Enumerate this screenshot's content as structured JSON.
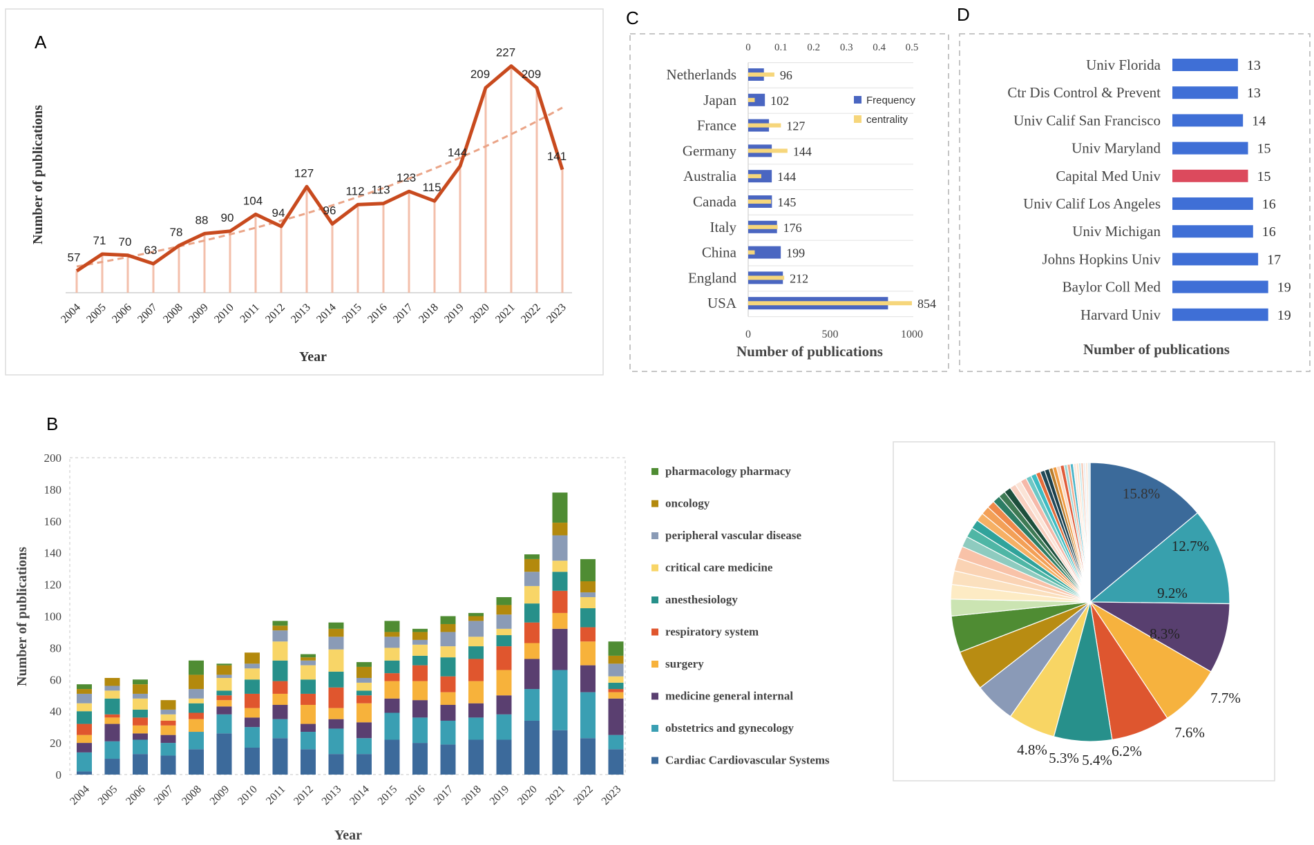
{
  "chart_data": [
    {
      "panel": "A",
      "type": "line",
      "title": "",
      "xlabel": "Year",
      "ylabel": "Number of publications",
      "x": [
        "2004",
        "2005",
        "2006",
        "2007",
        "2008",
        "2009",
        "2010",
        "2011",
        "2012",
        "2013",
        "2014",
        "2015",
        "2016",
        "2017",
        "2018",
        "2019",
        "2020",
        "2021",
        "2022",
        "2023"
      ],
      "values": [
        57,
        71,
        70,
        63,
        78,
        88,
        90,
        104,
        94,
        127,
        96,
        112,
        113,
        123,
        115,
        144,
        209,
        227,
        209,
        141
      ],
      "trendline": "exponential",
      "grid": false,
      "colors": {
        "line": "#c84a1e",
        "trend": "#eaa487",
        "stem": "#f2b9a2"
      }
    },
    {
      "panel": "B",
      "type": "bar",
      "stacked": true,
      "xlabel": "Year",
      "ylabel": "Number of publications",
      "ylim": [
        0,
        200
      ],
      "yticks": [
        0,
        20,
        40,
        60,
        80,
        100,
        120,
        140,
        160,
        180,
        200
      ],
      "categories": [
        "2004",
        "2005",
        "2006",
        "2007",
        "2008",
        "2009",
        "2010",
        "2011",
        "2012",
        "2013",
        "2014",
        "2015",
        "2016",
        "2017",
        "2018",
        "2019",
        "2020",
        "2021",
        "2022",
        "2023"
      ],
      "legend_position": "right",
      "series": [
        {
          "name": "Cardiac Cardiovascular Systems",
          "color": "#3c6a9b",
          "values": [
            2,
            10,
            13,
            12,
            16,
            26,
            17,
            23,
            16,
            13,
            13,
            22,
            20,
            19,
            22,
            22,
            34,
            28,
            23,
            16
          ]
        },
        {
          "name": "obstetrics and gynecology",
          "color": "#3a9fb3",
          "values": [
            12,
            11,
            9,
            8,
            11,
            12,
            13,
            12,
            11,
            16,
            10,
            17,
            16,
            15,
            14,
            16,
            20,
            38,
            29,
            9
          ]
        },
        {
          "name": "medicine general internal",
          "color": "#5a3f70",
          "values": [
            6,
            11,
            4,
            5,
            0,
            5,
            6,
            9,
            5,
            6,
            10,
            9,
            11,
            10,
            9,
            12,
            19,
            26,
            17,
            23
          ]
        },
        {
          "name": "surgery",
          "color": "#f7b23b",
          "values": [
            5,
            4,
            5,
            6,
            8,
            4,
            6,
            7,
            12,
            7,
            12,
            11,
            12,
            8,
            14,
            16,
            10,
            10,
            15,
            4
          ]
        },
        {
          "name": "respiratory system",
          "color": "#e0562e",
          "values": [
            7,
            2,
            5,
            3,
            4,
            3,
            9,
            8,
            7,
            13,
            5,
            5,
            10,
            10,
            14,
            15,
            13,
            14,
            9,
            2
          ]
        },
        {
          "name": "anesthesiology",
          "color": "#27908a",
          "values": [
            8,
            10,
            5,
            0,
            6,
            3,
            9,
            13,
            9,
            10,
            3,
            8,
            6,
            12,
            8,
            7,
            12,
            12,
            12,
            4
          ]
        },
        {
          "name": "critical care medicine",
          "color": "#f8d567",
          "values": [
            5,
            5,
            7,
            4,
            3,
            8,
            7,
            12,
            9,
            14,
            5,
            8,
            7,
            7,
            6,
            4,
            11,
            7,
            7,
            4
          ]
        },
        {
          "name": "peripheral vascular disease",
          "color": "#8a9bb6",
          "values": [
            6,
            3,
            3,
            3,
            6,
            2,
            3,
            7,
            3,
            8,
            3,
            7,
            3,
            9,
            10,
            9,
            9,
            16,
            3,
            8
          ]
        },
        {
          "name": "oncology",
          "color": "#b3890d",
          "values": [
            3,
            5,
            6,
            6,
            9,
            6,
            7,
            3,
            2,
            5,
            7,
            3,
            5,
            5,
            3,
            6,
            8,
            8,
            7,
            5
          ]
        },
        {
          "name": "pharmacology pharmacy",
          "color": "#4f8c33",
          "values": [
            3,
            0,
            3,
            0,
            9,
            1,
            0,
            3,
            2,
            4,
            3,
            7,
            2,
            5,
            2,
            5,
            3,
            19,
            14,
            9
          ]
        }
      ]
    },
    {
      "panel": "B-pie",
      "type": "pie",
      "labeled_slices": [
        {
          "label": "15.8%",
          "value": 15.8,
          "color": "#3b6a9a"
        },
        {
          "label": "12.7%",
          "value": 12.7,
          "color": "#38a0ad"
        },
        {
          "label": "9.2%",
          "value": 9.2,
          "color": "#583f6f"
        },
        {
          "label": "8.3%",
          "value": 8.3,
          "color": "#f6b23e"
        },
        {
          "label": "7.7%",
          "value": 7.7,
          "color": "#de562f"
        },
        {
          "label": "7.6%",
          "value": 7.6,
          "color": "#27908b"
        },
        {
          "label": "6.2%",
          "value": 6.2,
          "color": "#f8d564"
        },
        {
          "label": "5.4%",
          "value": 5.4,
          "color": "#8a9ab7"
        },
        {
          "label": "5.3%",
          "value": 5.3,
          "color": "#b88c12"
        },
        {
          "label": "4.8%",
          "value": 4.8,
          "color": "#4f8c33"
        }
      ],
      "unlabeled_slices": [
        {
          "value": 2.2,
          "color": "#cbe4b2"
        },
        {
          "value": 1.9,
          "color": "#fdebc4"
        },
        {
          "value": 1.8,
          "color": "#fbe0be"
        },
        {
          "value": 1.7,
          "color": "#fad3b4"
        },
        {
          "value": 1.6,
          "color": "#f8c2a8"
        },
        {
          "value": 1.4,
          "color": "#8ecbbf"
        },
        {
          "value": 1.3,
          "color": "#4fb6a5"
        },
        {
          "value": 1.2,
          "color": "#30a39b"
        },
        {
          "value": 1.1,
          "color": "#f6b064"
        },
        {
          "value": 1.1,
          "color": "#f3a057"
        },
        {
          "value": 1.0,
          "color": "#ef8a4a"
        },
        {
          "value": 1.0,
          "color": "#2c7d64"
        },
        {
          "value": 0.9,
          "color": "#3e7a54"
        },
        {
          "value": 0.9,
          "color": "#1d4f3c"
        },
        {
          "value": 0.8,
          "color": "#f8d0c0"
        },
        {
          "value": 0.8,
          "color": "#fbe4d7"
        },
        {
          "value": 0.8,
          "color": "#f6b9a9"
        },
        {
          "value": 0.7,
          "color": "#6fc7c5"
        },
        {
          "value": 0.7,
          "color": "#3dbcc3"
        },
        {
          "value": 0.6,
          "color": "#e46d3b"
        },
        {
          "value": 0.6,
          "color": "#234a5a"
        },
        {
          "value": 0.6,
          "color": "#1b3f4a"
        },
        {
          "value": 0.5,
          "color": "#b97d2d"
        },
        {
          "value": 0.5,
          "color": "#f09a3f"
        },
        {
          "value": 0.5,
          "color": "#fbd9c2"
        },
        {
          "value": 0.5,
          "color": "#e05c3a"
        },
        {
          "value": 0.4,
          "color": "#9fd7d6"
        },
        {
          "value": 0.4,
          "color": "#f4a98c"
        },
        {
          "value": 0.4,
          "color": "#4ab5c9"
        },
        {
          "value": 0.4,
          "color": "#fbe9df"
        },
        {
          "value": 0.3,
          "color": "#ffe1c8"
        },
        {
          "value": 0.3,
          "color": "#c7e7e8"
        },
        {
          "value": 0.3,
          "color": "#f5c5b0"
        },
        {
          "value": 0.3,
          "color": "#e9eef2"
        },
        {
          "value": 0.3,
          "color": "#fde8d9"
        },
        {
          "value": 0.3,
          "color": "#d6eaf0"
        }
      ]
    },
    {
      "panel": "C",
      "type": "bar",
      "orientation": "horizontal",
      "xlabel": "Number of publications",
      "categories": [
        "Netherlands",
        "Japan",
        "France",
        "Germany",
        "Australia",
        "Canada",
        "Italy",
        "China",
        "England",
        "USA"
      ],
      "series": [
        {
          "name": "Frequency",
          "color": "#4a66c1",
          "axis": "bottom",
          "values": [
            96,
            102,
            127,
            144,
            144,
            145,
            176,
            199,
            212,
            854
          ]
        },
        {
          "name": "centrality",
          "color": "#f6d67b",
          "axis": "top",
          "values": [
            0.08,
            0.02,
            0.1,
            0.12,
            0.04,
            0.07,
            0.09,
            0.02,
            0.11,
            0.5
          ]
        }
      ],
      "value_labels": [
        "96",
        "102",
        "127",
        "144",
        "144",
        "145",
        "176",
        "199",
        "212",
        "854"
      ],
      "bottom_axis": {
        "range": [
          0,
          1000
        ],
        "ticks": [
          "0",
          "500",
          "1000"
        ]
      },
      "top_axis": {
        "range": [
          0,
          0.5
        ],
        "ticks": [
          "0",
          "0.1",
          "0.2",
          "0.3",
          "0.4",
          "0.5"
        ]
      },
      "legend_position": "right"
    },
    {
      "panel": "D",
      "type": "bar",
      "orientation": "horizontal",
      "xlabel": "Number of publications",
      "categories": [
        "Univ Florida",
        "Ctr Dis Control & Prevent",
        "Univ Calif San Francisco",
        "Univ Maryland",
        "Capital Med Univ",
        "Univ Calif Los Angeles",
        "Univ Michigan",
        "Johns Hopkins Univ",
        "Baylor Coll Med",
        "Harvard Univ"
      ],
      "values": [
        13,
        13,
        14,
        15,
        15,
        16,
        16,
        17,
        19,
        19
      ],
      "value_labels": [
        "13",
        "13",
        "14",
        "15",
        "15",
        "16",
        "16",
        "17",
        "19",
        "19"
      ],
      "colors": [
        "#3f6fd6",
        "#3f6fd6",
        "#3f6fd6",
        "#3f6fd6",
        "#dc4a5d",
        "#3f6fd6",
        "#3f6fd6",
        "#3f6fd6",
        "#3f6fd6",
        "#3f6fd6"
      ]
    }
  ],
  "panel_letters": {
    "a": "A",
    "b": "B",
    "c": "C",
    "d": "D"
  }
}
